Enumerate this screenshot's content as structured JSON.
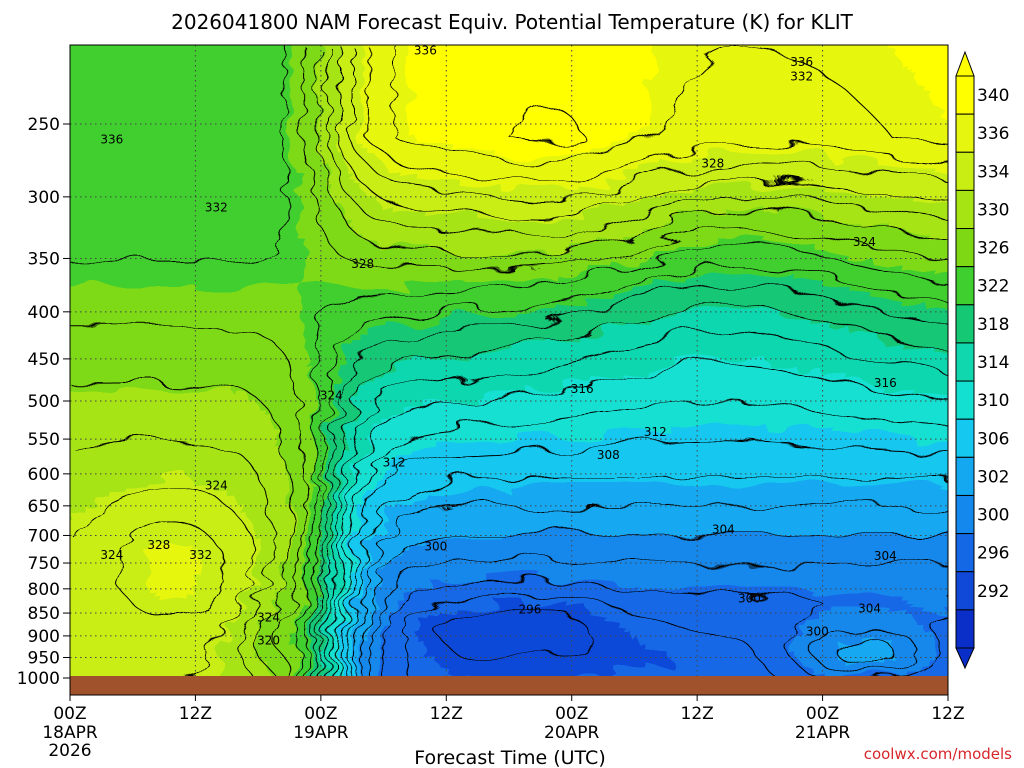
{
  "chart_data": {
    "type": "heatmap",
    "title": "2026041800 NAM Forecast Equiv. Potential Temperature (K) for KLIT",
    "xlabel": "Forecast Time (UTC)",
    "ylabel": "",
    "credit": "coolwx.com/models",
    "x_ticks": [
      {
        "hours": 0,
        "label": "00Z",
        "sub1": "18APR",
        "sub2": "2026"
      },
      {
        "hours": 12,
        "label": "12Z",
        "sub1": "",
        "sub2": ""
      },
      {
        "hours": 24,
        "label": "00Z",
        "sub1": "19APR",
        "sub2": ""
      },
      {
        "hours": 36,
        "label": "12Z",
        "sub1": "",
        "sub2": ""
      },
      {
        "hours": 48,
        "label": "00Z",
        "sub1": "20APR",
        "sub2": ""
      },
      {
        "hours": 60,
        "label": "12Z",
        "sub1": "",
        "sub2": ""
      },
      {
        "hours": 72,
        "label": "00Z",
        "sub1": "21APR",
        "sub2": ""
      },
      {
        "hours": 84,
        "label": "12Z",
        "sub1": "",
        "sub2": ""
      }
    ],
    "xlim": [
      0,
      84
    ],
    "y_ticks": [
      250,
      300,
      350,
      400,
      450,
      500,
      550,
      600,
      650,
      700,
      750,
      800,
      850,
      900,
      950,
      1000
    ],
    "ylim": [
      1000,
      200
    ],
    "y_scale": "log-pressure",
    "colorbar": {
      "labels": [
        "340",
        "336",
        "334",
        "330",
        "326",
        "322",
        "318",
        "314",
        "310",
        "306",
        "302",
        "300",
        "296",
        "292"
      ],
      "colors": [
        "#ffff00",
        "#e6f60e",
        "#c9ee14",
        "#a6e414",
        "#7ed914",
        "#3fcf2e",
        "#14c874",
        "#10d7ae",
        "#14e0d2",
        "#14c8f0",
        "#14a8f0",
        "#1488ec",
        "#1468e6",
        "#1048d8",
        "#0a2ec8"
      ],
      "range": [
        290,
        342
      ]
    },
    "contour_labels": [
      {
        "text": "336",
        "h": 34,
        "p": 208
      },
      {
        "text": "336",
        "h": 70,
        "p": 214
      },
      {
        "text": "332",
        "h": 70,
        "p": 222
      },
      {
        "text": "336",
        "h": 4,
        "p": 260
      },
      {
        "text": "328",
        "h": 61.5,
        "p": 276
      },
      {
        "text": "332",
        "h": 14,
        "p": 308
      },
      {
        "text": "324",
        "h": 76,
        "p": 336
      },
      {
        "text": "328",
        "h": 28,
        "p": 355
      },
      {
        "text": "316",
        "h": 49,
        "p": 485
      },
      {
        "text": "316",
        "h": 78,
        "p": 478
      },
      {
        "text": "324",
        "h": 25,
        "p": 493
      },
      {
        "text": "312",
        "h": 56,
        "p": 540
      },
      {
        "text": "308",
        "h": 51.5,
        "p": 572
      },
      {
        "text": "312",
        "h": 31,
        "p": 583
      },
      {
        "text": "324",
        "h": 14,
        "p": 618
      },
      {
        "text": "304",
        "h": 62.5,
        "p": 690
      },
      {
        "text": "300",
        "h": 35,
        "p": 720
      },
      {
        "text": "304",
        "h": 78,
        "p": 737
      },
      {
        "text": "324",
        "h": 4,
        "p": 735
      },
      {
        "text": "328",
        "h": 8.5,
        "p": 717
      },
      {
        "text": "332",
        "h": 12.5,
        "p": 735
      },
      {
        "text": "300",
        "h": 65,
        "p": 820
      },
      {
        "text": "304",
        "h": 76.5,
        "p": 840
      },
      {
        "text": "296",
        "h": 44,
        "p": 842
      },
      {
        "text": "324",
        "h": 19,
        "p": 860
      },
      {
        "text": "300",
        "h": 71.5,
        "p": 890
      },
      {
        "text": "320",
        "h": 19,
        "p": 910
      }
    ]
  }
}
